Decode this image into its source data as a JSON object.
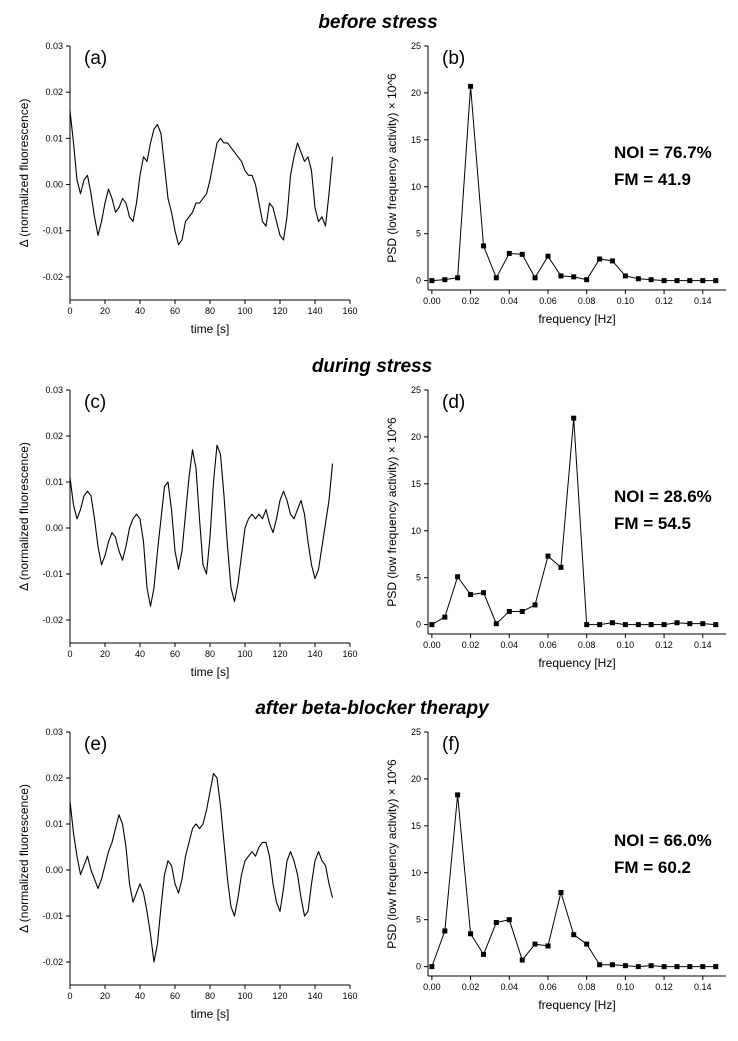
{
  "row_titles": [
    "before stress",
    "during stress",
    "after beta-blocker therapy"
  ],
  "chart_data": [
    {
      "id": "a",
      "type": "line",
      "panel_label": "(a)",
      "xlabel": "time [s]",
      "ylabel": "Δ (normalized fluorescence)",
      "xlim": [
        0,
        160
      ],
      "ylim": [
        -0.025,
        0.03
      ],
      "xticks": [
        0,
        20,
        40,
        60,
        80,
        100,
        120,
        140,
        160
      ],
      "yticks": [
        -0.02,
        -0.01,
        0.0,
        0.01,
        0.02,
        0.03
      ],
      "ytick_labels": [
        "-0.02",
        "-0.01",
        "0.00",
        "0.01",
        "0.02",
        "0.03"
      ],
      "x": [
        0,
        2,
        4,
        6,
        8,
        10,
        12,
        14,
        16,
        18,
        20,
        22,
        24,
        26,
        28,
        30,
        32,
        34,
        36,
        38,
        40,
        42,
        44,
        46,
        48,
        50,
        52,
        54,
        56,
        58,
        60,
        62,
        64,
        66,
        68,
        70,
        72,
        74,
        76,
        78,
        80,
        82,
        84,
        86,
        88,
        90,
        92,
        94,
        96,
        98,
        100,
        102,
        104,
        106,
        108,
        110,
        112,
        114,
        116,
        118,
        120,
        122,
        124,
        126,
        128,
        130,
        132,
        134,
        136,
        138,
        140,
        142,
        144,
        146,
        148,
        150
      ],
      "y": [
        0.016,
        0.009,
        0.001,
        -0.002,
        0.001,
        0.002,
        -0.002,
        -0.007,
        -0.011,
        -0.008,
        -0.004,
        -0.001,
        -0.003,
        -0.006,
        -0.005,
        -0.003,
        -0.004,
        -0.007,
        -0.008,
        -0.004,
        0.002,
        0.006,
        0.005,
        0.009,
        0.012,
        0.013,
        0.011,
        0.004,
        -0.003,
        -0.006,
        -0.01,
        -0.013,
        -0.012,
        -0.008,
        -0.007,
        -0.006,
        -0.004,
        -0.004,
        -0.003,
        -0.002,
        0.001,
        0.005,
        0.009,
        0.01,
        0.009,
        0.009,
        0.008,
        0.007,
        0.006,
        0.005,
        0.003,
        0.002,
        0.002,
        0.0,
        -0.004,
        -0.008,
        -0.009,
        -0.004,
        -0.005,
        -0.008,
        -0.011,
        -0.012,
        -0.007,
        0.002,
        0.006,
        0.009,
        0.007,
        0.005,
        0.006,
        0.003,
        -0.005,
        -0.008,
        -0.007,
        -0.009,
        -0.002,
        0.006
      ]
    },
    {
      "id": "b",
      "type": "line",
      "panel_label": "(b)",
      "xlabel": "frequency [Hz]",
      "ylabel": "PSD (low frequency activity) × 10^6",
      "xlim": [
        -0.002,
        0.152
      ],
      "ylim": [
        -1,
        25
      ],
      "xticks": [
        0.0,
        0.02,
        0.04,
        0.06,
        0.08,
        0.1,
        0.12,
        0.14
      ],
      "xtick_labels": [
        "0.00",
        "0.02",
        "0.04",
        "0.06",
        "0.08",
        "0.10",
        "0.12",
        "0.14"
      ],
      "yticks": [
        0,
        5,
        10,
        15,
        20,
        25
      ],
      "ytick_labels": [
        "0",
        "5",
        "10",
        "15",
        "20",
        "25"
      ],
      "x": [
        0.0,
        0.0067,
        0.0133,
        0.02,
        0.0267,
        0.0333,
        0.04,
        0.0467,
        0.0533,
        0.06,
        0.0667,
        0.0733,
        0.08,
        0.0867,
        0.0933,
        0.1,
        0.1067,
        0.1133,
        0.12,
        0.1267,
        0.1333,
        0.14,
        0.1467
      ],
      "y": [
        0.0,
        0.1,
        0.3,
        20.7,
        3.7,
        0.3,
        2.9,
        2.8,
        0.3,
        2.6,
        0.5,
        0.4,
        0.1,
        2.3,
        2.1,
        0.5,
        0.2,
        0.1,
        0.0,
        0.0,
        0.0,
        0.0,
        0.0
      ],
      "annotations": [
        "NOI = 76.7%",
        "FM = 41.9"
      ]
    },
    {
      "id": "c",
      "type": "line",
      "panel_label": "(c)",
      "xlabel": "time [s]",
      "ylabel": "Δ (normalized fluorescence)",
      "xlim": [
        0,
        160
      ],
      "ylim": [
        -0.025,
        0.03
      ],
      "xticks": [
        0,
        20,
        40,
        60,
        80,
        100,
        120,
        140,
        160
      ],
      "yticks": [
        -0.02,
        -0.01,
        0.0,
        0.01,
        0.02,
        0.03
      ],
      "ytick_labels": [
        "-0.02",
        "-0.01",
        "0.00",
        "0.01",
        "0.02",
        "0.03"
      ],
      "x": [
        0,
        2,
        4,
        6,
        8,
        10,
        12,
        14,
        16,
        18,
        20,
        22,
        24,
        26,
        28,
        30,
        32,
        34,
        36,
        38,
        40,
        42,
        44,
        46,
        48,
        50,
        52,
        54,
        56,
        58,
        60,
        62,
        64,
        66,
        68,
        70,
        72,
        74,
        76,
        78,
        80,
        82,
        84,
        86,
        88,
        90,
        92,
        94,
        96,
        98,
        100,
        102,
        104,
        106,
        108,
        110,
        112,
        114,
        116,
        118,
        120,
        122,
        124,
        126,
        128,
        130,
        132,
        134,
        136,
        138,
        140,
        142,
        144,
        146,
        148,
        150
      ],
      "y": [
        0.011,
        0.005,
        0.002,
        0.004,
        0.007,
        0.008,
        0.007,
        0.002,
        -0.004,
        -0.008,
        -0.006,
        -0.003,
        -0.001,
        -0.002,
        -0.005,
        -0.007,
        -0.004,
        0.0,
        0.002,
        0.003,
        0.002,
        -0.003,
        -0.013,
        -0.017,
        -0.013,
        -0.005,
        0.002,
        0.009,
        0.01,
        0.004,
        -0.005,
        -0.009,
        -0.005,
        0.003,
        0.011,
        0.017,
        0.013,
        0.002,
        -0.008,
        -0.01,
        -0.002,
        0.01,
        0.018,
        0.016,
        0.007,
        -0.004,
        -0.013,
        -0.016,
        -0.012,
        -0.006,
        0.0,
        0.002,
        0.003,
        0.002,
        0.003,
        0.002,
        0.004,
        0.001,
        -0.001,
        0.002,
        0.006,
        0.008,
        0.006,
        0.003,
        0.002,
        0.004,
        0.006,
        0.003,
        -0.003,
        -0.008,
        -0.011,
        -0.009,
        -0.004,
        0.001,
        0.006,
        0.014
      ]
    },
    {
      "id": "d",
      "type": "line",
      "panel_label": "(d)",
      "xlabel": "frequency [Hz]",
      "ylabel": "PSD (low frequency activity) × 10^6",
      "xlim": [
        -0.002,
        0.152
      ],
      "ylim": [
        -1,
        25
      ],
      "xticks": [
        0.0,
        0.02,
        0.04,
        0.06,
        0.08,
        0.1,
        0.12,
        0.14
      ],
      "xtick_labels": [
        "0.00",
        "0.02",
        "0.04",
        "0.06",
        "0.08",
        "0.10",
        "0.12",
        "0.14"
      ],
      "yticks": [
        0,
        5,
        10,
        15,
        20,
        25
      ],
      "ytick_labels": [
        "0",
        "5",
        "10",
        "15",
        "20",
        "25"
      ],
      "x": [
        0.0,
        0.0067,
        0.0133,
        0.02,
        0.0267,
        0.0333,
        0.04,
        0.0467,
        0.0533,
        0.06,
        0.0667,
        0.0733,
        0.08,
        0.0867,
        0.0933,
        0.1,
        0.1067,
        0.1133,
        0.12,
        0.1267,
        0.1333,
        0.14,
        0.1467
      ],
      "y": [
        0.0,
        0.8,
        5.1,
        3.2,
        3.4,
        0.1,
        1.4,
        1.4,
        2.1,
        7.3,
        6.1,
        22.0,
        0.0,
        0.0,
        0.2,
        0.0,
        0.0,
        0.0,
        0.0,
        0.2,
        0.1,
        0.1,
        0.0
      ],
      "annotations": [
        "NOI = 28.6%",
        "FM = 54.5"
      ]
    },
    {
      "id": "e",
      "type": "line",
      "panel_label": "(e)",
      "xlabel": "time [s]",
      "ylabel": "Δ (normalized fluorescence)",
      "xlim": [
        0,
        160
      ],
      "ylim": [
        -0.025,
        0.03
      ],
      "xticks": [
        0,
        20,
        40,
        60,
        80,
        100,
        120,
        140,
        160
      ],
      "yticks": [
        -0.02,
        -0.01,
        0.0,
        0.01,
        0.02,
        0.03
      ],
      "ytick_labels": [
        "-0.02",
        "-0.01",
        "0.00",
        "0.01",
        "0.02",
        "0.03"
      ],
      "x": [
        0,
        2,
        4,
        6,
        8,
        10,
        12,
        14,
        16,
        18,
        20,
        22,
        24,
        26,
        28,
        30,
        32,
        34,
        36,
        38,
        40,
        42,
        44,
        46,
        48,
        50,
        52,
        54,
        56,
        58,
        60,
        62,
        64,
        66,
        68,
        70,
        72,
        74,
        76,
        78,
        80,
        82,
        84,
        86,
        88,
        90,
        92,
        94,
        96,
        98,
        100,
        102,
        104,
        106,
        108,
        110,
        112,
        114,
        116,
        118,
        120,
        122,
        124,
        126,
        128,
        130,
        132,
        134,
        136,
        138,
        140,
        142,
        144,
        146,
        148,
        150
      ],
      "y": [
        0.015,
        0.008,
        0.003,
        -0.001,
        0.001,
        0.003,
        0.0,
        -0.002,
        -0.004,
        -0.002,
        0.001,
        0.004,
        0.006,
        0.009,
        0.012,
        0.01,
        0.005,
        -0.003,
        -0.007,
        -0.005,
        -0.003,
        -0.005,
        -0.009,
        -0.014,
        -0.02,
        -0.016,
        -0.008,
        -0.001,
        0.002,
        0.001,
        -0.003,
        -0.005,
        -0.002,
        0.003,
        0.006,
        0.009,
        0.01,
        0.009,
        0.01,
        0.013,
        0.017,
        0.021,
        0.02,
        0.014,
        0.006,
        -0.002,
        -0.008,
        -0.01,
        -0.006,
        -0.001,
        0.002,
        0.003,
        0.004,
        0.003,
        0.005,
        0.006,
        0.006,
        0.003,
        -0.003,
        -0.007,
        -0.009,
        -0.004,
        0.002,
        0.004,
        0.002,
        -0.001,
        -0.006,
        -0.01,
        -0.009,
        -0.003,
        0.002,
        0.004,
        0.002,
        0.001,
        -0.003,
        -0.006
      ]
    },
    {
      "id": "f",
      "type": "line",
      "panel_label": "(f)",
      "xlabel": "frequency [Hz]",
      "ylabel": "PSD (low frequency activity) × 10^6",
      "xlim": [
        -0.002,
        0.152
      ],
      "ylim": [
        -1,
        25
      ],
      "xticks": [
        0.0,
        0.02,
        0.04,
        0.06,
        0.08,
        0.1,
        0.12,
        0.14
      ],
      "xtick_labels": [
        "0.00",
        "0.02",
        "0.04",
        "0.06",
        "0.08",
        "0.10",
        "0.12",
        "0.14"
      ],
      "yticks": [
        0,
        5,
        10,
        15,
        20,
        25
      ],
      "ytick_labels": [
        "0",
        "5",
        "10",
        "15",
        "20",
        "25"
      ],
      "x": [
        0.0,
        0.0067,
        0.0133,
        0.02,
        0.0267,
        0.0333,
        0.04,
        0.0467,
        0.0533,
        0.06,
        0.0667,
        0.0733,
        0.08,
        0.0867,
        0.0933,
        0.1,
        0.1067,
        0.1133,
        0.12,
        0.1267,
        0.1333,
        0.14,
        0.1467
      ],
      "y": [
        0.0,
        3.8,
        18.3,
        3.5,
        1.3,
        4.7,
        5.0,
        0.7,
        2.4,
        2.2,
        7.9,
        3.4,
        2.4,
        0.2,
        0.2,
        0.1,
        0.0,
        0.1,
        0.0,
        0.0,
        0.0,
        0.0,
        0.0
      ],
      "annotations": [
        "NOI = 66.0%",
        "FM = 60.2"
      ]
    }
  ]
}
